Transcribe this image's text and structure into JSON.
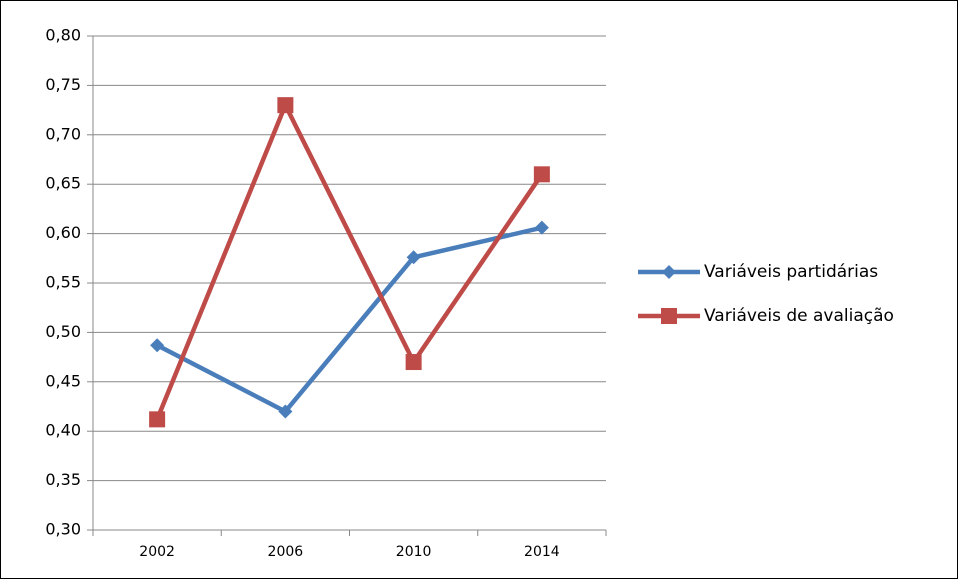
{
  "chart_data": {
    "type": "line",
    "categories": [
      "2002",
      "2006",
      "2010",
      "2014"
    ],
    "series": [
      {
        "name": "Variáveis partidárias",
        "color": "#4a7ebb",
        "marker": "diamond",
        "values": [
          0.487,
          0.42,
          0.576,
          0.606
        ]
      },
      {
        "name": "Variáveis de avaliação",
        "color": "#be4b48",
        "marker": "square",
        "values": [
          0.412,
          0.73,
          0.47,
          0.66
        ]
      }
    ],
    "ylim": [
      0.3,
      0.8
    ],
    "yticks": [
      {
        "value": 0.3,
        "label": "0,30"
      },
      {
        "value": 0.35,
        "label": "0,35"
      },
      {
        "value": 0.4,
        "label": "0,40"
      },
      {
        "value": 0.45,
        "label": "0,45"
      },
      {
        "value": 0.5,
        "label": "0,50"
      },
      {
        "value": 0.55,
        "label": "0,55"
      },
      {
        "value": 0.6,
        "label": "0,60"
      },
      {
        "value": 0.65,
        "label": "0,65"
      },
      {
        "value": 0.7,
        "label": "0,70"
      },
      {
        "value": 0.75,
        "label": "0,75"
      },
      {
        "value": 0.8,
        "label": "0,80"
      }
    ],
    "grid": true,
    "legend": "right"
  }
}
